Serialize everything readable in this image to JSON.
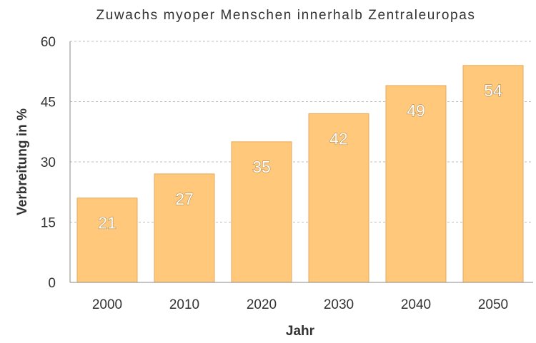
{
  "chart_data": {
    "type": "bar",
    "title": "Zuwachs myoper Menschen innerhalb Zentraleuropas",
    "xlabel": "Jahr",
    "ylabel": "Verbreitung in %",
    "categories": [
      "2000",
      "2010",
      "2020",
      "2030",
      "2040",
      "2050"
    ],
    "values": [
      21,
      27,
      35,
      42,
      49,
      54
    ],
    "ylim": [
      0,
      60
    ],
    "yticks": [
      0,
      15,
      30,
      45,
      60
    ],
    "grid": true,
    "bar_color": "#FFC87A",
    "bar_edge_color": "#E9A95B",
    "data_label_color": "#FFFFFF"
  }
}
